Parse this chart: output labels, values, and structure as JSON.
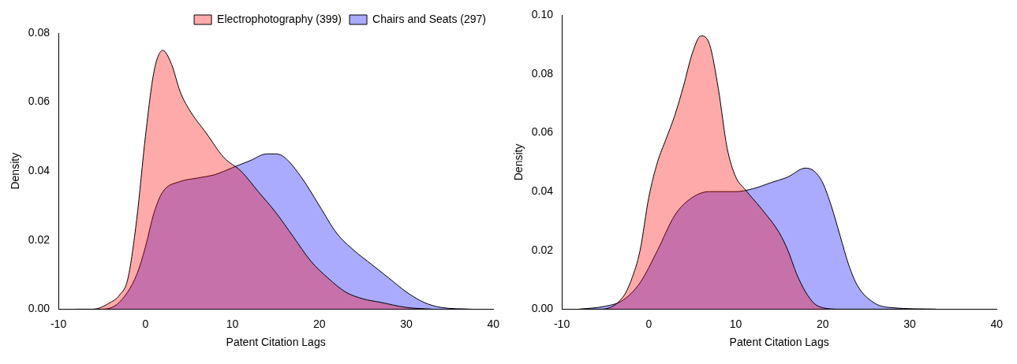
{
  "chart_data": [
    {
      "type": "area",
      "xlabel": "Patent Citation Lags",
      "ylabel": "Density",
      "xlim": [
        -10,
        40
      ],
      "xticks": [
        -10,
        0,
        10,
        20,
        30,
        40
      ],
      "ylim": [
        0,
        0.08
      ],
      "yticks": [
        {
          "value": 0,
          "label": "0.00"
        },
        {
          "value": 0.02,
          "label": "0.02"
        },
        {
          "value": 0.04,
          "label": "0.04"
        },
        {
          "value": 0.06,
          "label": "0.06"
        },
        {
          "value": 0.08,
          "label": "0.08"
        }
      ],
      "grid": false,
      "legend": "top right",
      "series": [
        {
          "name": "Electrophotography (399)",
          "color": "#ff0000",
          "x": [
            -8,
            -6,
            -4,
            -3,
            -2,
            -1,
            0,
            1,
            2,
            3,
            4,
            5,
            7,
            9,
            11,
            13,
            15,
            17,
            19,
            21,
            23,
            25,
            27,
            30,
            33
          ],
          "values": [
            0,
            0,
            0.002,
            0.004,
            0.009,
            0.026,
            0.05,
            0.069,
            0.075,
            0.071,
            0.063,
            0.058,
            0.051,
            0.044,
            0.04,
            0.034,
            0.028,
            0.021,
            0.014,
            0.009,
            0.005,
            0.003,
            0.002,
            0.0005,
            0
          ]
        },
        {
          "name": "Chairs and Seats (297)",
          "color": "#0000ff",
          "x": [
            -6,
            -5,
            -3,
            -1,
            0,
            1,
            2,
            4,
            6,
            8,
            10,
            12,
            14,
            15,
            16,
            18,
            20,
            22,
            24,
            26,
            28,
            30,
            32,
            34,
            37.5
          ],
          "values": [
            0,
            0,
            0.002,
            0.01,
            0.018,
            0.028,
            0.034,
            0.037,
            0.038,
            0.039,
            0.041,
            0.043,
            0.045,
            0.045,
            0.044,
            0.038,
            0.03,
            0.022,
            0.017,
            0.013,
            0.009,
            0.005,
            0.002,
            0.0005,
            0
          ]
        }
      ]
    },
    {
      "type": "area",
      "xlabel": "Patent Citation Lags",
      "ylabel": "Density",
      "xlim": [
        -10,
        40
      ],
      "xticks": [
        -10,
        0,
        10,
        20,
        30,
        40
      ],
      "ylim": [
        0,
        0.1
      ],
      "yticks": [
        {
          "value": 0,
          "label": "0.00"
        },
        {
          "value": 0.02,
          "label": "0.02"
        },
        {
          "value": 0.04,
          "label": "0.04"
        },
        {
          "value": 0.06,
          "label": "0.06"
        },
        {
          "value": 0.08,
          "label": "0.08"
        },
        {
          "value": 0.1,
          "label": "0.10"
        }
      ],
      "grid": false,
      "legend": false,
      "series": [
        {
          "color": "#ff0000",
          "x": [
            -8,
            -5.5,
            -3,
            -2,
            -1,
            0,
            1,
            2,
            3,
            4,
            5,
            6,
            7,
            8,
            9,
            10,
            11,
            13,
            15,
            16,
            17,
            18,
            19,
            20,
            22,
            33
          ],
          "values": [
            0,
            0,
            0.004,
            0.01,
            0.02,
            0.038,
            0.05,
            0.058,
            0.066,
            0.076,
            0.087,
            0.093,
            0.09,
            0.075,
            0.055,
            0.045,
            0.041,
            0.034,
            0.026,
            0.02,
            0.012,
            0.006,
            0.002,
            0.0005,
            0,
            0
          ]
        },
        {
          "color": "#0000ff",
          "x": [
            -8,
            -5,
            -3,
            -1,
            1,
            3,
            5,
            7,
            10,
            12,
            14,
            16,
            18,
            19,
            20,
            21,
            22,
            23,
            24,
            26,
            28,
            33
          ],
          "values": [
            0,
            0.001,
            0.003,
            0.009,
            0.02,
            0.032,
            0.038,
            0.04,
            0.04,
            0.041,
            0.043,
            0.045,
            0.048,
            0.047,
            0.043,
            0.035,
            0.025,
            0.015,
            0.008,
            0.002,
            0.0005,
            0
          ]
        }
      ]
    }
  ]
}
